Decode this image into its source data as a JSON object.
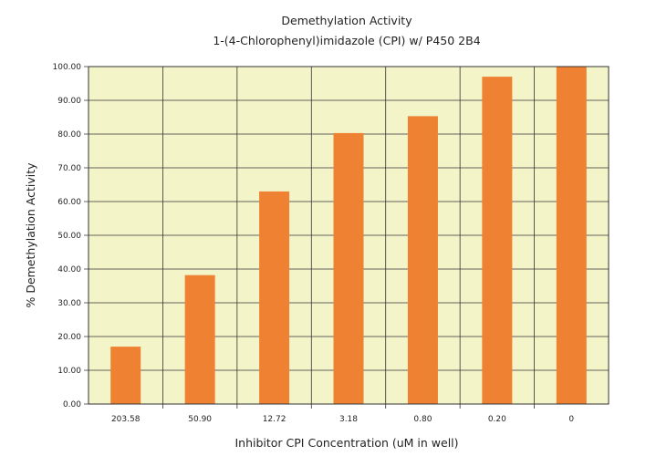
{
  "chart_data": {
    "type": "bar",
    "title": "Demethylation Activity",
    "subtitle": "1-(4-Chlorophenyl)imidazole (CPI) w/ P450 2B4",
    "xlabel": "Inhibitor CPI Concentration (uM in well)",
    "ylabel": "% Demethylation Activity",
    "categories": [
      "203.58",
      "50.90",
      "12.72",
      "3.18",
      "0.80",
      "0.20",
      "0"
    ],
    "values": [
      17.0,
      38.2,
      63.0,
      80.3,
      85.3,
      97.0,
      100.0
    ],
    "ylim": [
      0,
      100
    ],
    "yticks": [
      "0.00",
      "10.00",
      "20.00",
      "30.00",
      "40.00",
      "50.00",
      "60.00",
      "70.00",
      "80.00",
      "90.00",
      "100.00"
    ],
    "grid": true,
    "legend": "none",
    "colors": {
      "bar": "#ee8232",
      "plot_background": "#f3f5c9",
      "grid": "#333333"
    }
  }
}
